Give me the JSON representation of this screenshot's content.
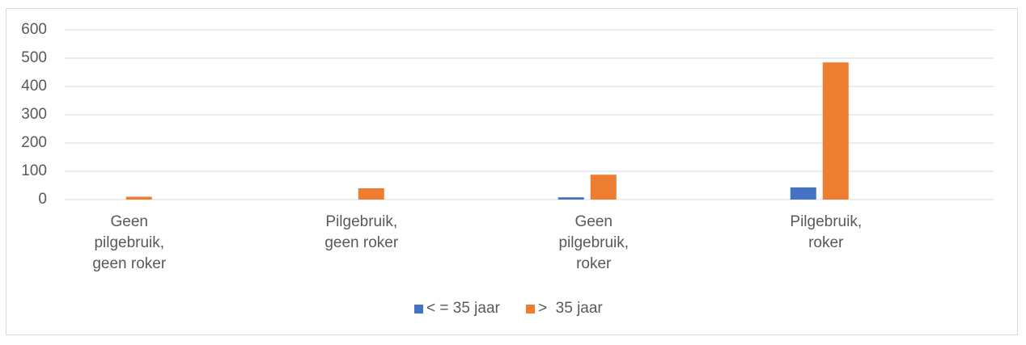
{
  "chart_data": {
    "type": "bar",
    "categories": [
      "Geen pilgebruik, geen roker",
      "Pilgebruik, geen roker",
      "Geen pilgebruik, roker",
      "Pilgebruik, roker"
    ],
    "series": [
      {
        "name": "< = 35 jaar",
        "color": "#4472c4",
        "values": [
          0,
          0,
          8,
          43
        ]
      },
      {
        "name": ">  35 jaar",
        "color": "#ed7d31",
        "values": [
          10,
          40,
          88,
          485
        ]
      }
    ],
    "ylim": [
      0,
      600
    ],
    "yticks": [
      0,
      100,
      200,
      300,
      400,
      500,
      600
    ],
    "grid": true,
    "legend": "bottom"
  }
}
